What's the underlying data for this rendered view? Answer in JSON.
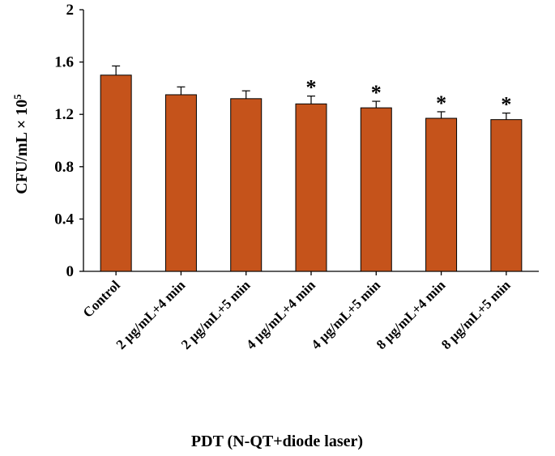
{
  "chart_data": {
    "type": "bar",
    "title": "",
    "xlabel": "PDT (N-QT+diode laser)",
    "ylabel": {
      "main": "CFU/mL × 10",
      "superscript": "5"
    },
    "ylim": [
      0,
      2
    ],
    "yticks": [
      "0",
      "0.4",
      "0.8",
      "1.2",
      "1.6",
      "2"
    ],
    "categories": [
      "Control",
      "2 µg/mL+4 min",
      "2 µg/mL+5 min",
      "4 µg/mL+4 min",
      "4 µg/mL+5 min",
      "8 µg/mL+4 min",
      "8 µg/mL+5 min"
    ],
    "values": [
      1.5,
      1.35,
      1.32,
      1.28,
      1.25,
      1.17,
      1.16
    ],
    "errors": [
      0.07,
      0.06,
      0.06,
      0.06,
      0.05,
      0.05,
      0.05
    ],
    "significance": [
      "",
      "",
      "",
      "*",
      "*",
      "*",
      "*"
    ],
    "grid": false,
    "bar_color": "#c5531b",
    "bar_edge_color": "#000000"
  }
}
